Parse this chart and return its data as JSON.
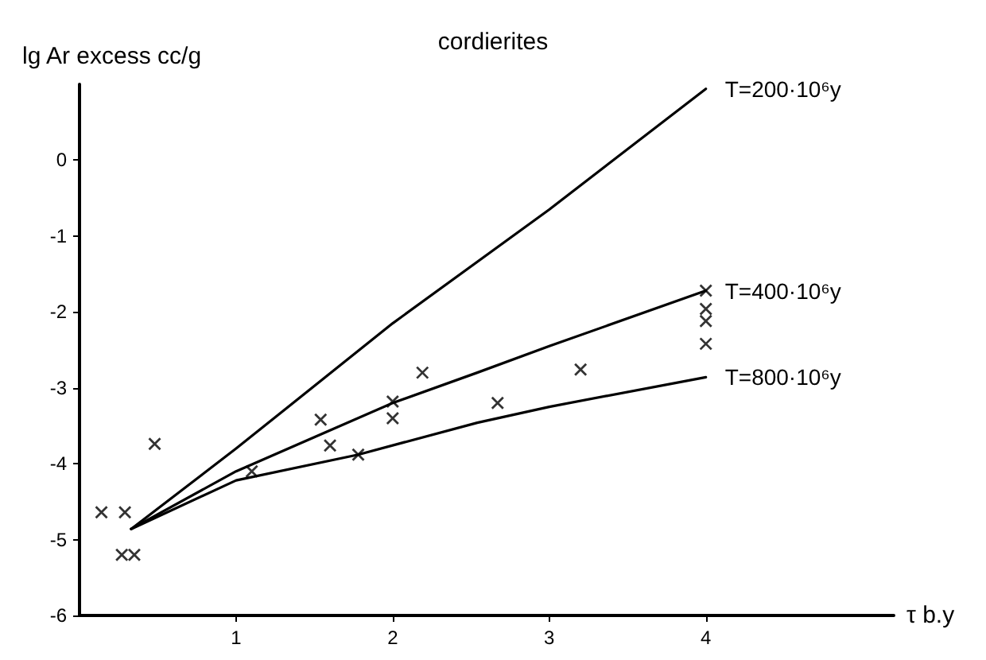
{
  "chart_data": {
    "type": "line",
    "title": "cordierites",
    "xlabel": "τ b.y",
    "ylabel": "lg Ar excess cc/g",
    "xlim": [
      0,
      5.2
    ],
    "ylim": [
      -6,
      1
    ],
    "xticks": [
      1,
      2,
      3,
      4
    ],
    "yticks": [
      -6,
      -5,
      -4,
      -3,
      -2,
      -1,
      0
    ],
    "grid": false,
    "legend": false,
    "marker": "cross",
    "line_style": "solid",
    "series": [
      {
        "name": "T=200·10⁶y",
        "color": "#000000",
        "marker": "none",
        "x": [
          0.33,
          1,
          2,
          3,
          4
        ],
        "values": [
          -4.86,
          -3.8,
          -2.15,
          -0.65,
          0.94
        ]
      },
      {
        "name": "T=400·10⁶y",
        "color": "#000000",
        "marker": "none",
        "x": [
          0.33,
          1,
          1.5,
          2,
          2.54,
          3,
          4
        ],
        "values": [
          -4.86,
          -4.1,
          -3.65,
          -3.2,
          -2.8,
          -2.45,
          -1.72
        ]
      },
      {
        "name": "T=800·10⁶y",
        "color": "#000000",
        "marker": "none",
        "x": [
          0.33,
          1,
          1.78,
          2.54,
          3,
          4
        ],
        "values": [
          -4.86,
          -4.22,
          -3.88,
          -3.46,
          -3.25,
          -2.86
        ]
      },
      {
        "type": "scatter",
        "color": "#000000",
        "x": [
          0.14,
          0.29,
          0.27,
          0.35,
          0.48,
          1.1,
          1.54,
          1.6,
          1.78,
          2,
          2,
          2.19,
          2.67,
          3.2,
          4,
          4,
          4,
          4
        ],
        "values": [
          -4.64,
          -4.64,
          -5.2,
          -5.2,
          -3.74,
          -4.1,
          -3.42,
          -3.76,
          -3.88,
          -3.18,
          -3.4,
          -2.8,
          -3.2,
          -2.76,
          -1.72,
          -1.96,
          -2.12,
          -2.42
        ]
      }
    ]
  }
}
